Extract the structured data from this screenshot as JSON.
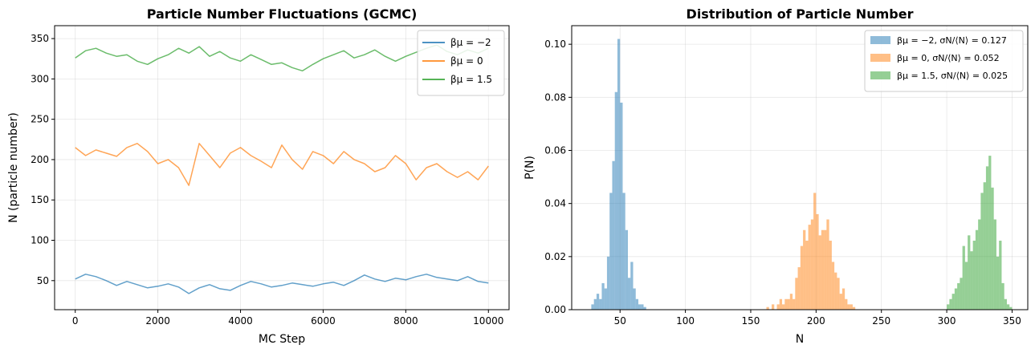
{
  "chart_data": [
    {
      "type": "line",
      "title": "Particle Number Fluctuations (GCMC)",
      "xlabel": "MC Step",
      "ylabel": "N (particle number)",
      "xlim": [
        -500,
        10500
      ],
      "ylim": [
        14,
        366
      ],
      "xticks": [
        0,
        2000,
        4000,
        6000,
        8000,
        10000
      ],
      "yticks": [
        50,
        100,
        150,
        200,
        250,
        300,
        350
      ],
      "grid": true,
      "legend_position": "top-right",
      "series": [
        {
          "name": "βμ = −2",
          "color": "#1f77b4",
          "x": [
            0,
            250,
            500,
            750,
            1000,
            1250,
            1500,
            1750,
            2000,
            2250,
            2500,
            2750,
            3000,
            3250,
            3500,
            3750,
            4000,
            4250,
            4500,
            4750,
            5000,
            5250,
            5500,
            5750,
            6000,
            6250,
            6500,
            6750,
            7000,
            7250,
            7500,
            7750,
            8000,
            8250,
            8500,
            8750,
            9000,
            9250,
            9500,
            9750,
            10000
          ],
          "y": [
            52,
            58,
            55,
            50,
            44,
            49,
            45,
            41,
            43,
            46,
            42,
            34,
            41,
            45,
            40,
            38,
            44,
            49,
            46,
            42,
            44,
            47,
            45,
            43,
            46,
            48,
            44,
            50,
            57,
            52,
            49,
            53,
            51,
            55,
            58,
            54,
            52,
            50,
            55,
            49,
            47
          ]
        },
        {
          "name": "βμ = 0",
          "color": "#ff7f0e",
          "x": [
            0,
            250,
            500,
            750,
            1000,
            1250,
            1500,
            1750,
            2000,
            2250,
            2500,
            2750,
            3000,
            3250,
            3500,
            3750,
            4000,
            4250,
            4500,
            4750,
            5000,
            5250,
            5500,
            5750,
            6000,
            6250,
            6500,
            6750,
            7000,
            7250,
            7500,
            7750,
            8000,
            8250,
            8500,
            8750,
            9000,
            9250,
            9500,
            9750,
            10000
          ],
          "y": [
            215,
            205,
            212,
            208,
            204,
            215,
            220,
            210,
            195,
            200,
            190,
            168,
            220,
            205,
            190,
            208,
            215,
            205,
            198,
            190,
            218,
            200,
            188,
            210,
            205,
            195,
            210,
            200,
            195,
            185,
            190,
            205,
            195,
            175,
            190,
            195,
            185,
            178,
            185,
            175,
            192
          ]
        },
        {
          "name": "βμ = 1.5",
          "color": "#2ca02c",
          "x": [
            0,
            250,
            500,
            750,
            1000,
            1250,
            1500,
            1750,
            2000,
            2250,
            2500,
            2750,
            3000,
            3250,
            3500,
            3750,
            4000,
            4250,
            4500,
            4750,
            5000,
            5250,
            5500,
            5750,
            6000,
            6250,
            6500,
            6750,
            7000,
            7250,
            7500,
            7750,
            8000,
            8250,
            8500,
            8750,
            9000,
            9250,
            9500,
            9750,
            10000
          ],
          "y": [
            326,
            335,
            338,
            332,
            328,
            330,
            322,
            318,
            325,
            330,
            338,
            332,
            340,
            328,
            334,
            326,
            322,
            330,
            324,
            318,
            320,
            314,
            310,
            318,
            325,
            330,
            335,
            326,
            330,
            336,
            328,
            322,
            328,
            333,
            338,
            342,
            334,
            330,
            336,
            332,
            338
          ]
        }
      ]
    },
    {
      "type": "bar",
      "subtype": "histogram",
      "title": "Distribution of Particle Number",
      "xlabel": "N",
      "ylabel": "P(N)",
      "xlim": [
        13,
        362
      ],
      "ylim": [
        0,
        0.107
      ],
      "xticks": [
        50,
        100,
        150,
        200,
        250,
        300,
        350
      ],
      "yticks": [
        0.0,
        0.02,
        0.04,
        0.06,
        0.08,
        0.1
      ],
      "grid": true,
      "legend_position": "top-right",
      "series": [
        {
          "name": "βμ = −2, σN/⟨N⟩ = 0.127",
          "color": "#1f77b4",
          "bin_width": 2,
          "bins": [
            [
              28,
              0.002
            ],
            [
              30,
              0.004
            ],
            [
              32,
              0.006
            ],
            [
              34,
              0.004
            ],
            [
              36,
              0.01
            ],
            [
              38,
              0.008
            ],
            [
              40,
              0.02
            ],
            [
              42,
              0.044
            ],
            [
              44,
              0.056
            ],
            [
              46,
              0.082
            ],
            [
              48,
              0.102
            ],
            [
              50,
              0.078
            ],
            [
              52,
              0.044
            ],
            [
              54,
              0.03
            ],
            [
              56,
              0.012
            ],
            [
              58,
              0.018
            ],
            [
              60,
              0.008
            ],
            [
              62,
              0.004
            ],
            [
              64,
              0.002
            ],
            [
              66,
              0.002
            ],
            [
              68,
              0.001
            ]
          ]
        },
        {
          "name": "βμ = 0, σN/⟨N⟩ = 0.052",
          "color": "#ff7f0e",
          "bin_width": 2,
          "bins": [
            [
              162,
              0.001
            ],
            [
              166,
              0.002
            ],
            [
              170,
              0.002
            ],
            [
              172,
              0.004
            ],
            [
              174,
              0.002
            ],
            [
              176,
              0.004
            ],
            [
              178,
              0.004
            ],
            [
              180,
              0.006
            ],
            [
              182,
              0.004
            ],
            [
              184,
              0.012
            ],
            [
              186,
              0.016
            ],
            [
              188,
              0.024
            ],
            [
              190,
              0.03
            ],
            [
              192,
              0.026
            ],
            [
              194,
              0.032
            ],
            [
              196,
              0.034
            ],
            [
              198,
              0.044
            ],
            [
              200,
              0.036
            ],
            [
              202,
              0.028
            ],
            [
              204,
              0.03
            ],
            [
              206,
              0.03
            ],
            [
              208,
              0.034
            ],
            [
              210,
              0.026
            ],
            [
              212,
              0.018
            ],
            [
              214,
              0.014
            ],
            [
              216,
              0.012
            ],
            [
              218,
              0.006
            ],
            [
              220,
              0.008
            ],
            [
              222,
              0.004
            ],
            [
              224,
              0.002
            ],
            [
              226,
              0.002
            ],
            [
              228,
              0.001
            ]
          ]
        },
        {
          "name": "βμ = 1.5, σN/⟨N⟩ = 0.025",
          "color": "#2ca02c",
          "bin_width": 2,
          "bins": [
            [
              300,
              0.002
            ],
            [
              302,
              0.004
            ],
            [
              304,
              0.006
            ],
            [
              306,
              0.008
            ],
            [
              308,
              0.01
            ],
            [
              310,
              0.012
            ],
            [
              312,
              0.024
            ],
            [
              314,
              0.018
            ],
            [
              316,
              0.028
            ],
            [
              318,
              0.022
            ],
            [
              320,
              0.026
            ],
            [
              322,
              0.03
            ],
            [
              324,
              0.034
            ],
            [
              326,
              0.044
            ],
            [
              328,
              0.048
            ],
            [
              330,
              0.054
            ],
            [
              332,
              0.058
            ],
            [
              334,
              0.046
            ],
            [
              336,
              0.034
            ],
            [
              338,
              0.02
            ],
            [
              340,
              0.026
            ],
            [
              342,
              0.01
            ],
            [
              344,
              0.004
            ],
            [
              346,
              0.002
            ],
            [
              348,
              0.001
            ]
          ]
        }
      ]
    }
  ]
}
